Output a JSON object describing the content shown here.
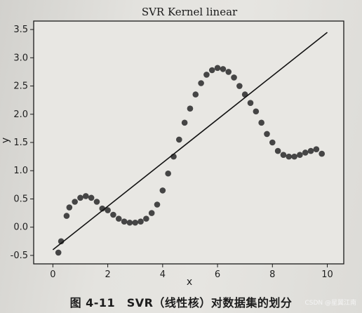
{
  "chart_data": {
    "type": "scatter",
    "title": "SVR Kernel linear",
    "xlabel": "x",
    "ylabel": "y",
    "xlim": [
      -0.7,
      10.6
    ],
    "ylim": [
      -0.65,
      3.65
    ],
    "xticks": [
      0,
      2,
      4,
      6,
      8,
      10
    ],
    "yticks": [
      -0.5,
      0.0,
      0.5,
      1.0,
      1.5,
      2.0,
      2.5,
      3.0,
      3.5
    ],
    "grid": false,
    "colors": {
      "points": "#333333",
      "line": "#111111"
    },
    "series": [
      {
        "kind": "points",
        "x": [
          0.2,
          0.3,
          0.5,
          0.6,
          0.8,
          1.0,
          1.2,
          1.4,
          1.6,
          1.8,
          2.0,
          2.2,
          2.4,
          2.6,
          2.8,
          3.0,
          3.2,
          3.4,
          3.6,
          3.8,
          4.0,
          4.2,
          4.4,
          4.6,
          4.8,
          5.0,
          5.2,
          5.4,
          5.6,
          5.8,
          6.0,
          6.2,
          6.4,
          6.6,
          6.8,
          7.0,
          7.2,
          7.4,
          7.6,
          7.8,
          8.0,
          8.2,
          8.4,
          8.6,
          8.8,
          9.0,
          9.2,
          9.4,
          9.6,
          9.8
        ],
        "y": [
          -0.45,
          -0.25,
          0.2,
          0.35,
          0.45,
          0.52,
          0.55,
          0.52,
          0.45,
          0.33,
          0.3,
          0.22,
          0.15,
          0.1,
          0.08,
          0.08,
          0.1,
          0.15,
          0.25,
          0.4,
          0.65,
          0.95,
          1.25,
          1.55,
          1.85,
          2.1,
          2.35,
          2.55,
          2.7,
          2.78,
          2.82,
          2.8,
          2.75,
          2.65,
          2.5,
          2.35,
          2.2,
          2.05,
          1.85,
          1.65,
          1.5,
          1.35,
          1.28,
          1.25,
          1.25,
          1.28,
          1.32,
          1.35,
          1.38,
          1.3
        ]
      },
      {
        "kind": "line",
        "x": [
          0.0,
          10.0
        ],
        "y": [
          -0.4,
          3.45
        ]
      }
    ]
  },
  "caption": "图 4-11　SVR（线性核）对数据集的划分",
  "watermark": "CSDN @星翼江南"
}
